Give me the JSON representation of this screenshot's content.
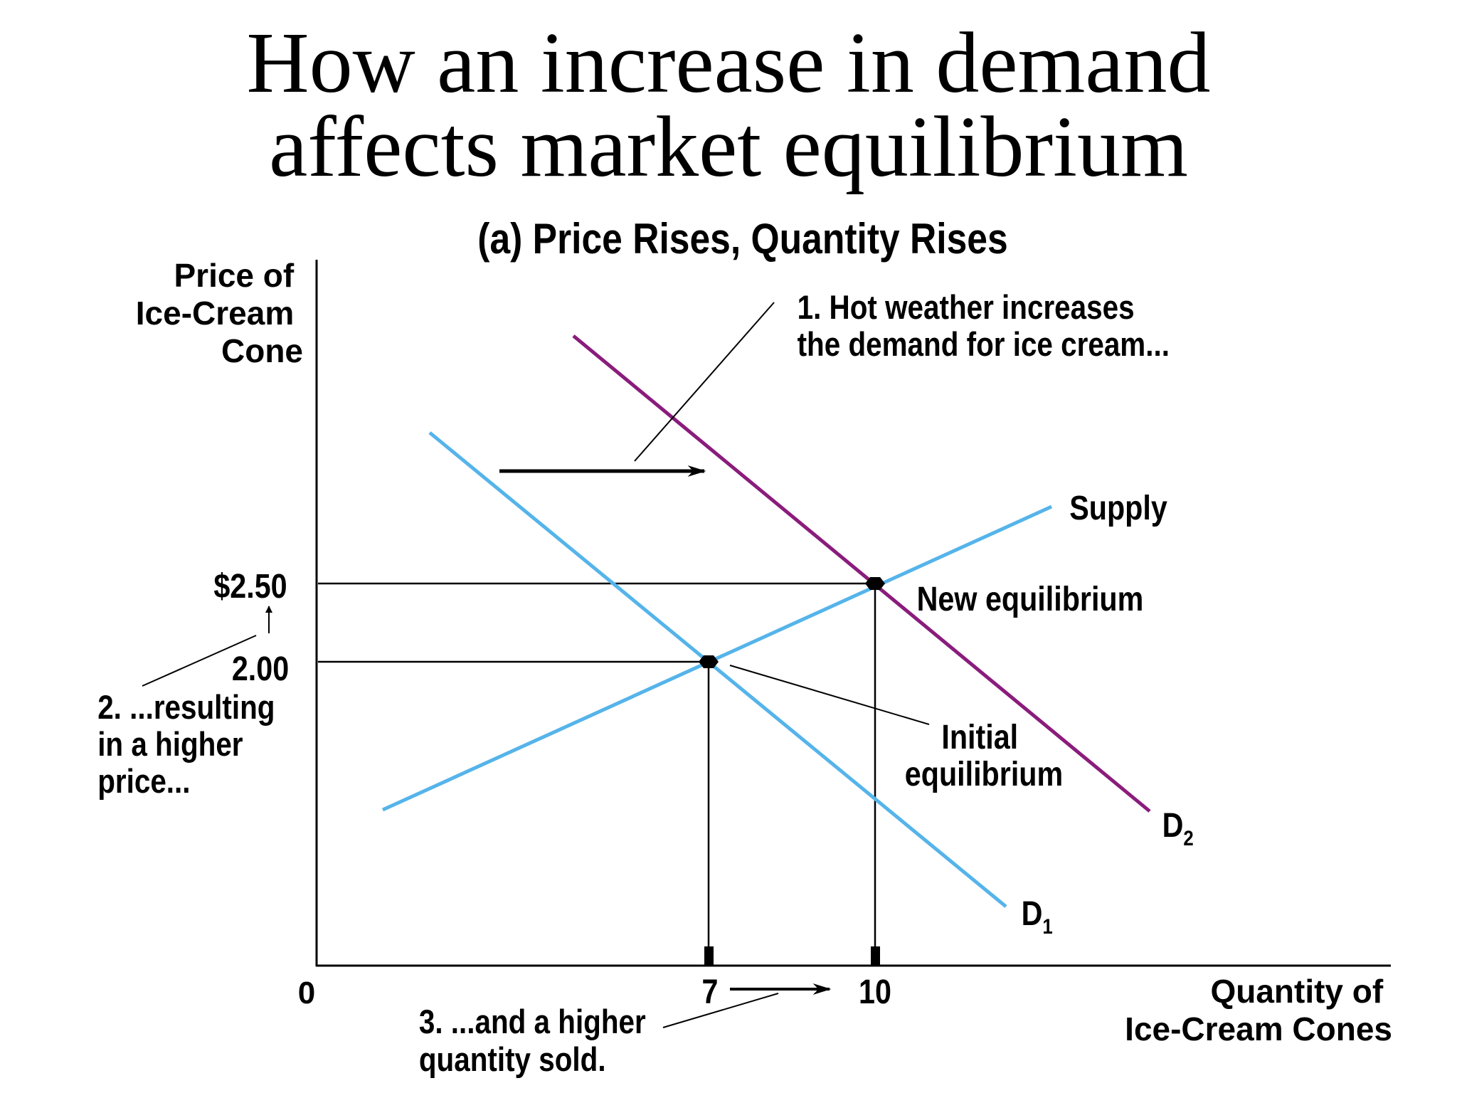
{
  "title": {
    "line1": "How an increase in demand",
    "line2": "affects market equilibrium"
  },
  "panel_title": "(a) Price Rises, Quantity Rises",
  "y_axis_label": [
    "Price of",
    "Ice-Cream",
    "Cone"
  ],
  "x_axis_label": [
    "Quantity of",
    "Ice-Cream Cones"
  ],
  "origin_label": "0",
  "price_ticks": {
    "high": "$2.50",
    "low": "2.00"
  },
  "quantity_ticks": {
    "low": "7",
    "high": "10"
  },
  "curves": {
    "supply": "Supply",
    "d1_letter": "D",
    "d1_sub": "1",
    "d2_letter": "D",
    "d2_sub": "2"
  },
  "equilibria": {
    "new": "New equilibrium",
    "initial": [
      "Initial",
      "equilibrium"
    ]
  },
  "annotations": {
    "step1": [
      "1. Hot weather increases",
      "the demand for ice cream..."
    ],
    "step2": [
      "2. ...resulting",
      "in a higher",
      "price..."
    ],
    "step3": [
      "3. ...and a higher",
      "quantity sold."
    ]
  },
  "colors": {
    "supply": "#55b4ea",
    "demand_initial": "#55b4ea",
    "demand_new": "#8a1c7c",
    "lines": "#000000"
  }
}
